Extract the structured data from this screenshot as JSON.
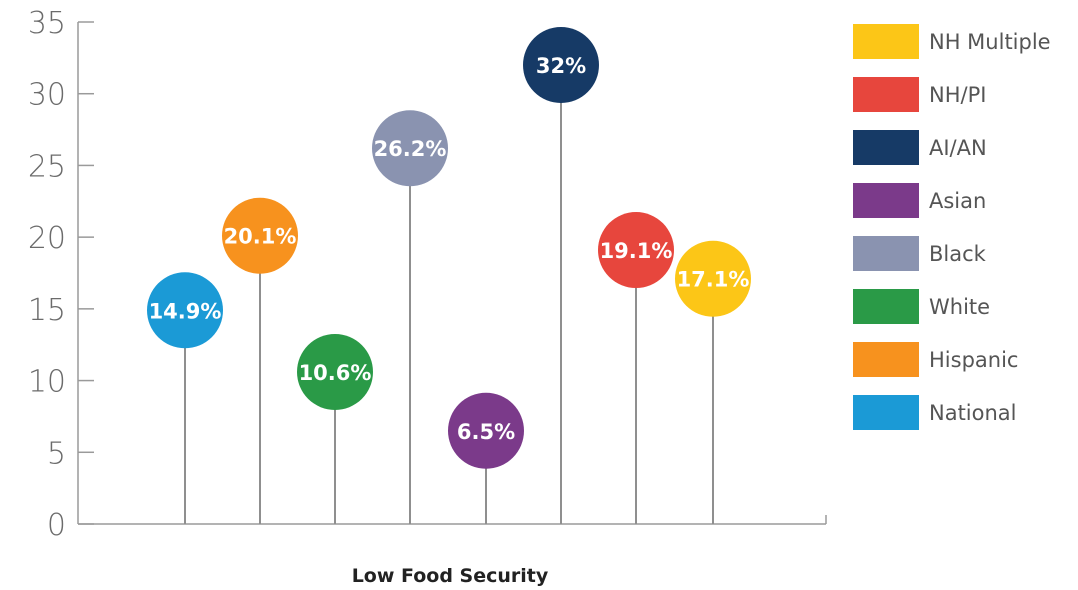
{
  "chart_data": {
    "type": "lollipop",
    "xlabel": "Low Food Security",
    "ylim": [
      0,
      35
    ],
    "yticks": [
      0,
      5,
      10,
      15,
      20,
      25,
      30,
      35
    ],
    "grid": false,
    "legend_position": "right",
    "points": [
      {
        "category": "National",
        "value": 14.9,
        "label": "14.9%",
        "color": "#1b9ad6",
        "text_color": "#ffffff"
      },
      {
        "category": "Hispanic",
        "value": 20.1,
        "label": "20.1%",
        "color": "#f7921e",
        "text_color": "#ffffff"
      },
      {
        "category": "White",
        "value": 10.6,
        "label": "10.6%",
        "color": "#2a9a47",
        "text_color": "#ffffff"
      },
      {
        "category": "Black",
        "value": 26.2,
        "label": "26.2%",
        "color": "#8a93b0",
        "text_color": "#ffffff"
      },
      {
        "category": "Asian",
        "value": 6.5,
        "label": "6.5%",
        "color": "#7b3a8a",
        "text_color": "#ffffff"
      },
      {
        "category": "AI/AN",
        "value": 32,
        "label": "32%",
        "color": "#163a66",
        "text_color": "#ffffff"
      },
      {
        "category": "NH/PI",
        "value": 19.1,
        "label": "19.1%",
        "color": "#e7463d",
        "text_color": "#ffffff"
      },
      {
        "category": "NH Multiple",
        "value": 17.1,
        "label": "17.1%",
        "color": "#fcc617",
        "text_color": "#5a5a5a"
      }
    ],
    "legend": [
      {
        "label": "NH Multiple",
        "color": "#fcc617"
      },
      {
        "label": "NH/PI",
        "color": "#e7463d"
      },
      {
        "label": "AI/AN",
        "color": "#163a66"
      },
      {
        "label": "Asian",
        "color": "#7b3a8a"
      },
      {
        "label": "Black",
        "color": "#8a93b0"
      },
      {
        "label": "White",
        "color": "#2a9a47"
      },
      {
        "label": "Hispanic",
        "color": "#f7921e"
      },
      {
        "label": "National",
        "color": "#1b9ad6"
      }
    ]
  }
}
